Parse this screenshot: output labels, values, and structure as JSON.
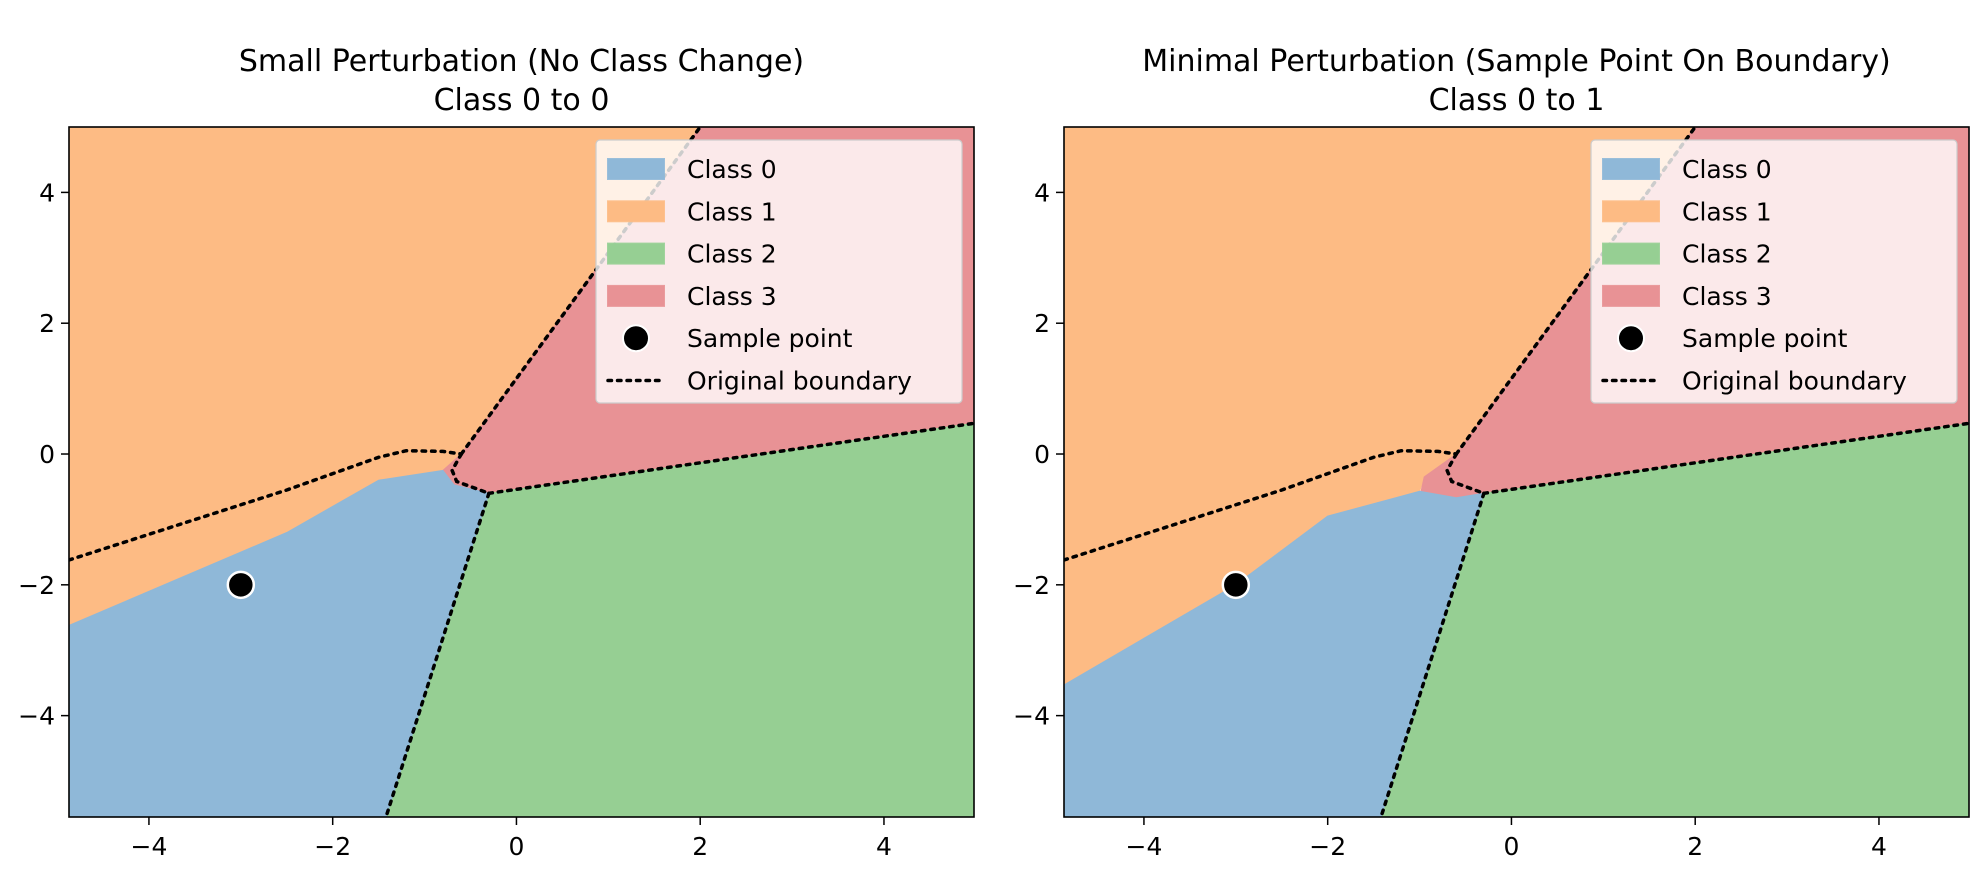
{
  "chart_data": [
    {
      "type": "decision-region",
      "title_line1": "Small Perturbation (No Class Change)",
      "title_line2": "Class 0 to 0",
      "xlim": [
        -4.87,
        4.98
      ],
      "ylim": [
        -5.55,
        5.0
      ],
      "xticks": [
        -4,
        -2,
        0,
        2,
        4
      ],
      "yticks": [
        4,
        2,
        0,
        -2,
        -4
      ],
      "sample_point": {
        "x": -3.0,
        "y": -2.0
      },
      "regions": {
        "class1": [
          [
            -4.87,
            5.0
          ],
          [
            2.0,
            5.0
          ],
          [
            -0.6,
            0.0
          ],
          [
            -0.8,
            -0.25
          ],
          [
            -1.5,
            -0.4
          ],
          [
            -2.5,
            -1.2
          ],
          [
            -4.87,
            -2.62
          ]
        ],
        "class3": [
          [
            2.0,
            5.0
          ],
          [
            4.98,
            5.0
          ],
          [
            4.98,
            0.47
          ],
          [
            -0.3,
            -0.6
          ],
          [
            -0.68,
            -0.47
          ],
          [
            -0.8,
            -0.25
          ],
          [
            -0.6,
            0.0
          ]
        ],
        "class2": [
          [
            -1.42,
            -5.55
          ],
          [
            4.98,
            -5.55
          ],
          [
            4.98,
            0.47
          ],
          [
            -0.3,
            -0.6
          ]
        ],
        "class0": [
          [
            -4.87,
            -2.62
          ],
          [
            -2.5,
            -1.2
          ],
          [
            -1.5,
            -0.4
          ],
          [
            -0.8,
            -0.25
          ],
          [
            -0.68,
            -0.47
          ],
          [
            -0.3,
            -0.6
          ],
          [
            -1.42,
            -5.55
          ],
          [
            -4.87,
            -5.55
          ]
        ]
      }
    },
    {
      "type": "decision-region",
      "title_line1": "Minimal Perturbation (Sample Point On Boundary)",
      "title_line2": "Class 0 to 1",
      "xlim": [
        -4.87,
        4.98
      ],
      "ylim": [
        -5.55,
        5.0
      ],
      "xticks": [
        -4,
        -2,
        0,
        2,
        4
      ],
      "yticks": [
        4,
        2,
        0,
        -2,
        -4
      ],
      "sample_point": {
        "x": -3.0,
        "y": -2.0
      },
      "regions": {
        "class1": [
          [
            -4.87,
            5.0
          ],
          [
            2.0,
            5.0
          ],
          [
            -0.6,
            0.0
          ],
          [
            -0.95,
            -0.35
          ],
          [
            -1.0,
            -0.57
          ],
          [
            -2.0,
            -0.95
          ],
          [
            -3.0,
            -2.0
          ],
          [
            -4.87,
            -3.53
          ]
        ],
        "class3": [
          [
            2.0,
            5.0
          ],
          [
            4.98,
            5.0
          ],
          [
            4.98,
            0.47
          ],
          [
            -0.3,
            -0.6
          ],
          [
            -0.6,
            -0.67
          ],
          [
            -1.0,
            -0.67
          ],
          [
            -0.95,
            -0.35
          ],
          [
            -0.6,
            0.0
          ]
        ],
        "class2": [
          [
            -1.42,
            -5.55
          ],
          [
            4.98,
            -5.55
          ],
          [
            4.98,
            0.47
          ],
          [
            -0.3,
            -0.6
          ]
        ],
        "class0": [
          [
            -4.87,
            -3.53
          ],
          [
            -3.0,
            -2.0
          ],
          [
            -2.0,
            -0.95
          ],
          [
            -1.0,
            -0.57
          ],
          [
            -0.6,
            -0.67
          ],
          [
            -0.3,
            -0.6
          ],
          [
            -1.42,
            -5.55
          ],
          [
            -4.87,
            -5.55
          ]
        ]
      }
    }
  ],
  "boundary": {
    "upper_left": [
      [
        -4.87,
        -1.62
      ],
      [
        -2.5,
        -0.55
      ],
      [
        -1.5,
        -0.05
      ],
      [
        -1.2,
        0.05
      ],
      [
        -0.8,
        0.04
      ],
      [
        -0.6,
        0.0
      ]
    ],
    "upper_right": [
      [
        -0.6,
        0.0
      ],
      [
        2.0,
        5.0
      ]
    ],
    "center_loop": [
      [
        -0.6,
        0.0
      ],
      [
        -0.7,
        -0.25
      ],
      [
        -0.65,
        -0.42
      ],
      [
        -0.3,
        -0.6
      ]
    ],
    "right": [
      [
        -0.3,
        -0.6
      ],
      [
        4.98,
        0.47
      ]
    ],
    "lower": [
      [
        -0.3,
        -0.6
      ],
      [
        -1.42,
        -5.55
      ]
    ]
  },
  "legend": [
    {
      "label": "Class 0",
      "kind": "patch",
      "color": "#8fb8d8"
    },
    {
      "label": "Class 1",
      "kind": "patch",
      "color": "#fdbb84"
    },
    {
      "label": "Class 2",
      "kind": "patch",
      "color": "#96cf93"
    },
    {
      "label": "Class 3",
      "kind": "patch",
      "color": "#e89295"
    },
    {
      "label": "Sample point",
      "kind": "marker",
      "color": "#000000"
    },
    {
      "label": "Original boundary",
      "kind": "dotted",
      "color": "#000000"
    }
  ],
  "colors": {
    "class0": "#8fb8d8",
    "class1": "#fdbb84",
    "class2": "#96cf93",
    "class3": "#e89295",
    "boundary": "#000000",
    "legend_face": "#ffffff"
  }
}
